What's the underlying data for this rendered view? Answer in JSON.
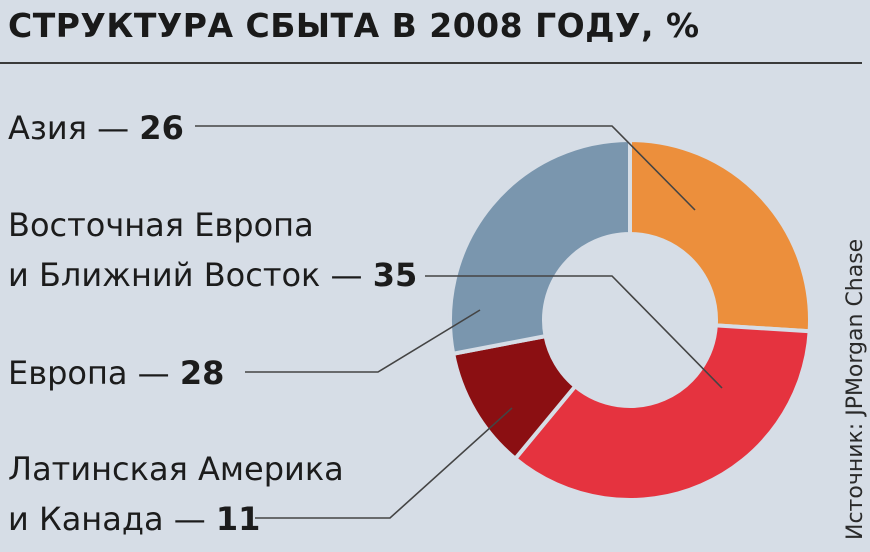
{
  "chart_data": {
    "type": "pie",
    "title": "СТРУКТУРА СБЫТА В 2008 ГОДУ, %",
    "source": "Источник: JPMorgan Chase",
    "dash": "—",
    "slices": [
      {
        "label": "Азия",
        "label_lines": [
          "Азия"
        ],
        "value": 26,
        "color": "#ec8f3c"
      },
      {
        "label": "Восточная Европа и Ближний Восток",
        "label_lines": [
          "Восточная Европа",
          "и Ближний Восток"
        ],
        "value": 35,
        "color": "#e5333f"
      },
      {
        "label": "Латинская Америка и Канада",
        "label_lines": [
          "Латинская Америка",
          "и Канада"
        ],
        "value": 11,
        "color": "#8b0f12"
      },
      {
        "label": "Европа",
        "label_lines": [
          "Европа"
        ],
        "value": 28,
        "color": "#7a96ae"
      }
    ]
  }
}
